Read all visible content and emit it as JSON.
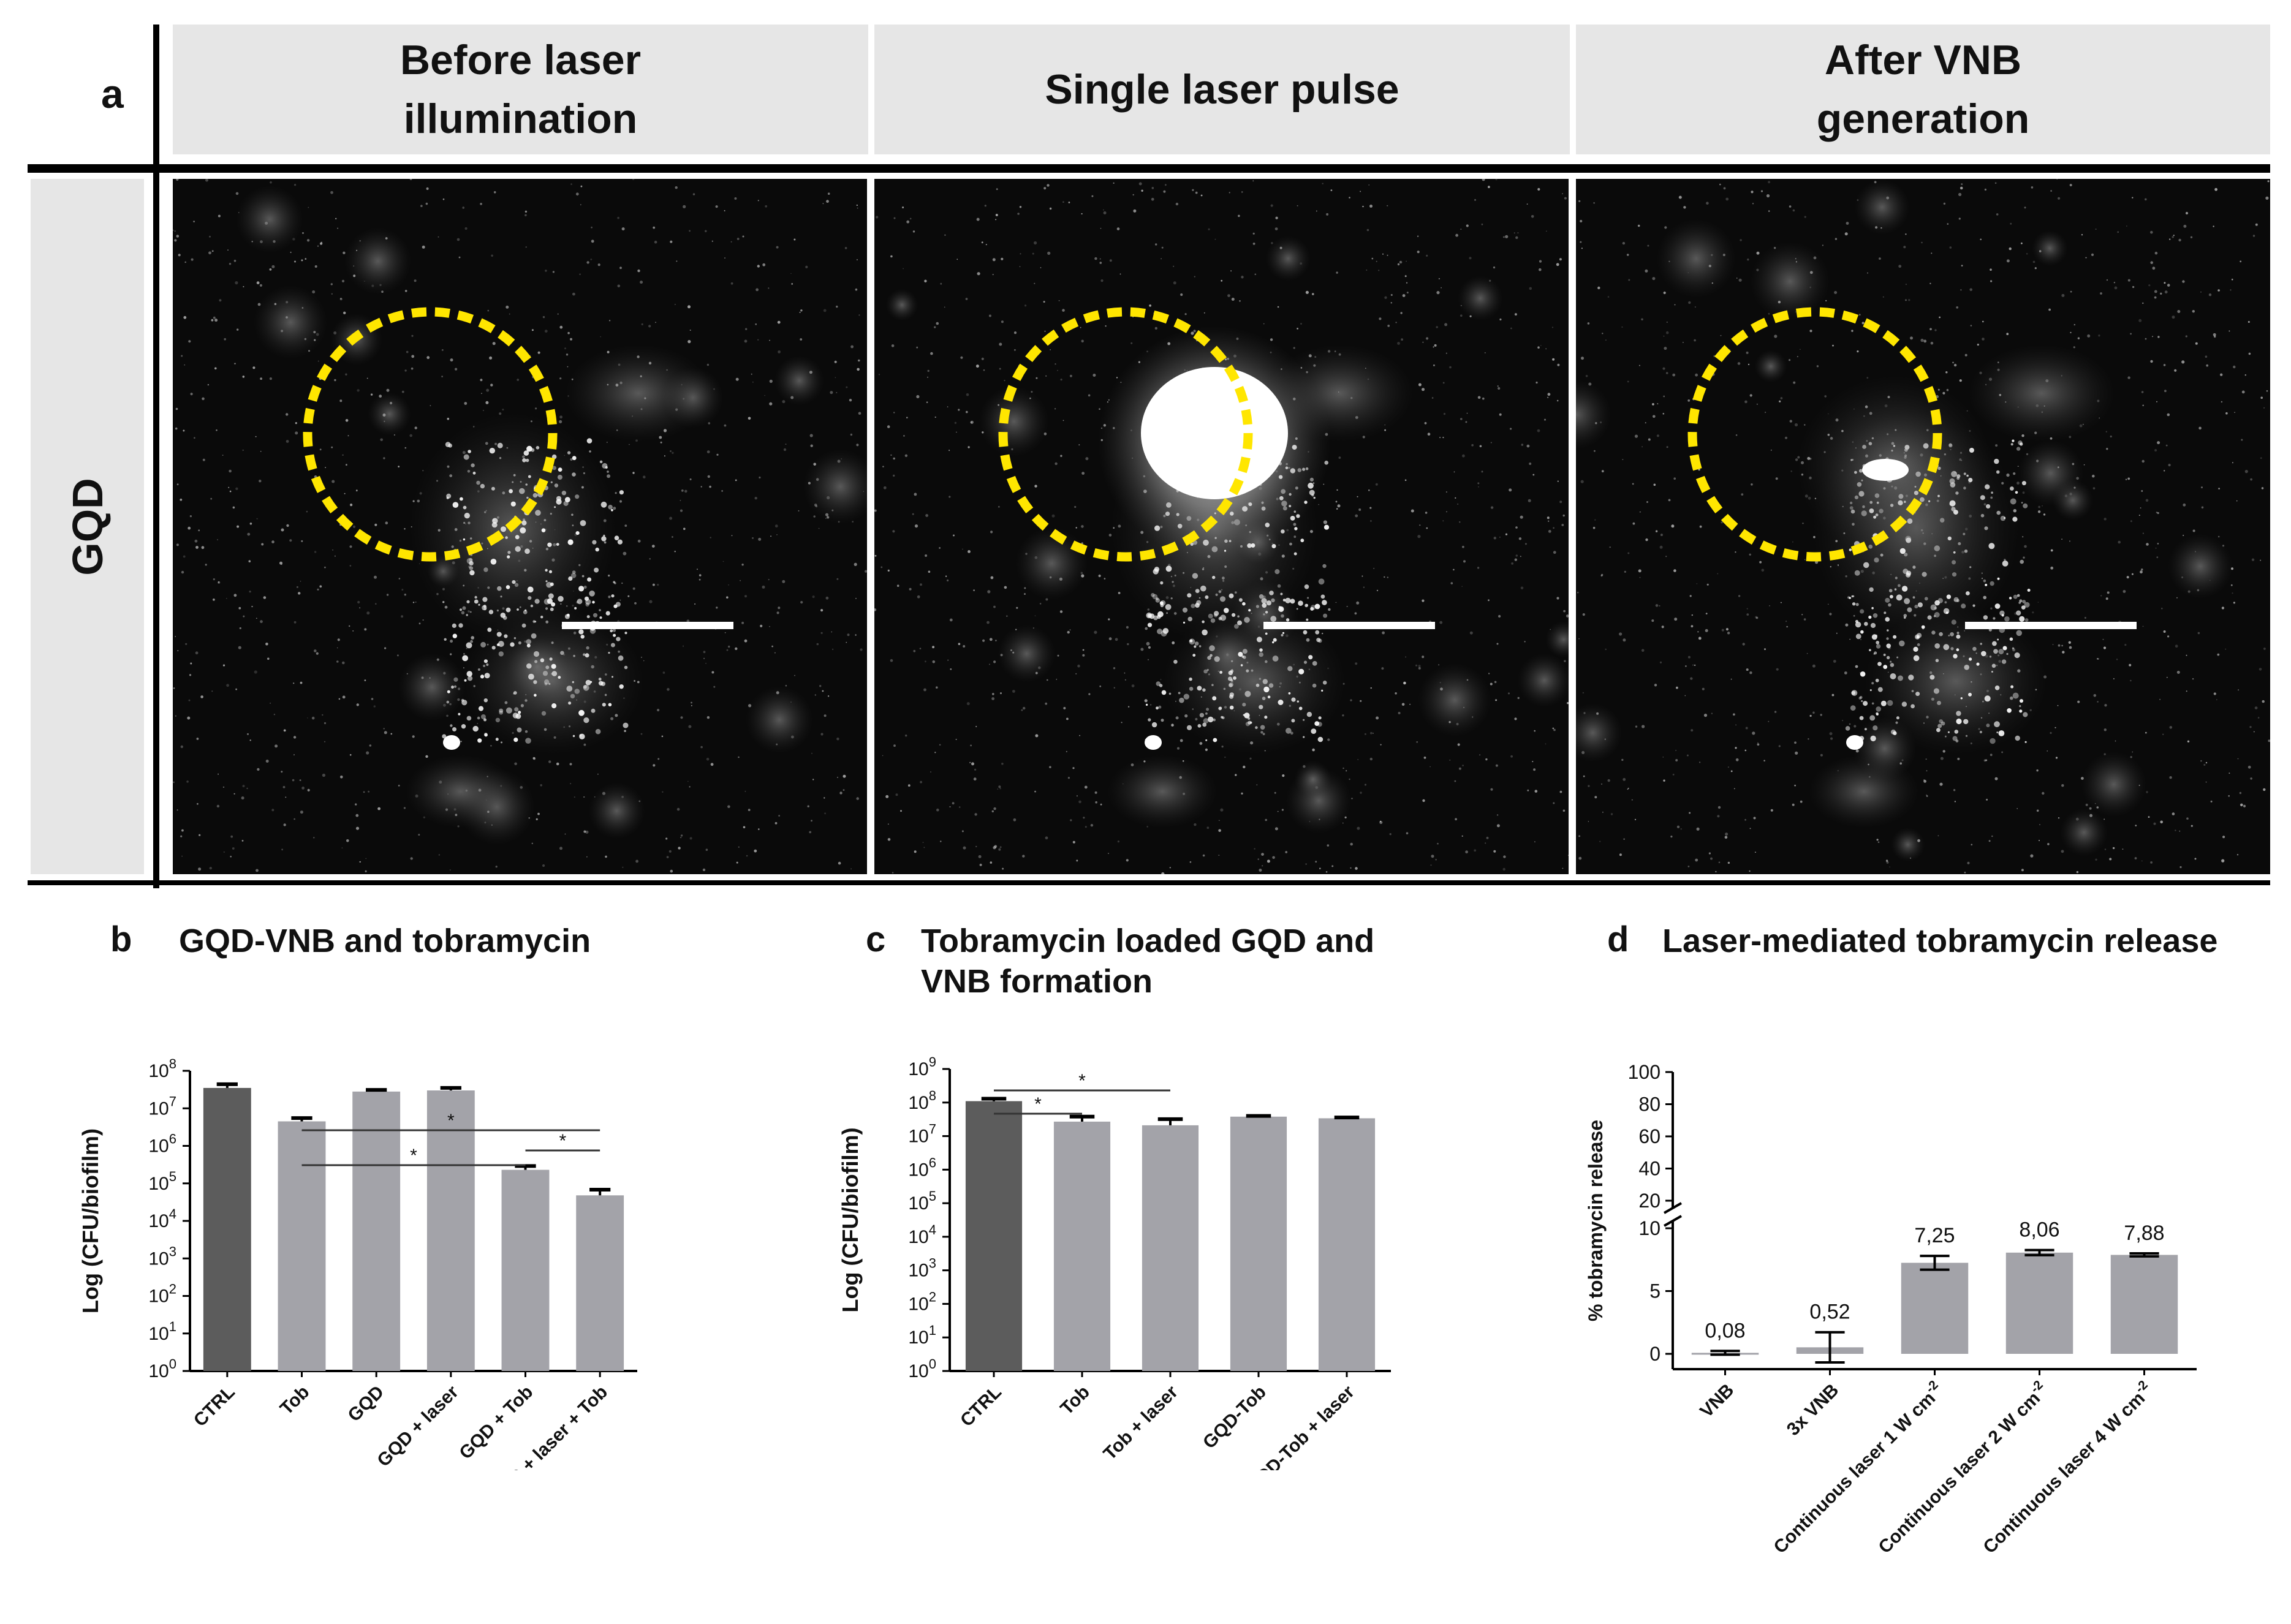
{
  "panel_a": {
    "letter": "a",
    "row_label": "GQD",
    "columns": [
      {
        "title": "Before laser illumination",
        "title_lines": [
          "Before laser",
          "illumination"
        ]
      },
      {
        "title": "Single laser pulse",
        "title_lines": [
          "Single laser pulse"
        ]
      },
      {
        "title": "After VNB generation",
        "title_lines": [
          "After VNB",
          "generation"
        ]
      }
    ],
    "image_names": [
      "before-laser-image",
      "single-pulse-image",
      "after-vnb-image"
    ],
    "colors": {
      "header_bg": "#e6e6e6",
      "circle": "#ffe600",
      "scale_bar": "#ffffff"
    }
  },
  "chart_data": [
    {
      "letter": "b",
      "title": "GQD-VNB and tobramycin",
      "type": "bar",
      "yscale": "log",
      "ylabel": "Log (CFU/biofilm)",
      "ylim": [
        1,
        100000000
      ],
      "yticks": [
        "10^0",
        "10^1",
        "10^2",
        "10^3",
        "10^4",
        "10^5",
        "10^6",
        "10^7",
        "10^8"
      ],
      "categories": [
        "CTRL",
        "Tob",
        "GQD",
        "GQD + laser",
        "GQD + Tob",
        "GQD + laser + Tob"
      ],
      "values": [
        35000000,
        4500000,
        28000000,
        30000000,
        230000,
        48000
      ],
      "error_upper": [
        44000000,
        5500000,
        31000000,
        35000000,
        290000,
        68000
      ],
      "bar_colors": [
        "#5c5c5c",
        "#a3a3a9",
        "#a3a3a9",
        "#a3a3a9",
        "#a3a3a9",
        "#a3a3a9"
      ],
      "significance": [
        {
          "from": "Tob",
          "to": "GQD + laser + Tob",
          "label": "*"
        },
        {
          "from": "Tob",
          "to": "GQD + Tob",
          "label": "*"
        },
        {
          "from": "GQD + Tob",
          "to": "GQD + laser + Tob",
          "label": "*"
        }
      ]
    },
    {
      "letter": "c",
      "title": "Tobramycin loaded GQD and VNB formation",
      "title_lines": [
        "Tobramycin loaded GQD and",
        "VNB formation"
      ],
      "type": "bar",
      "yscale": "log",
      "ylabel": "Log (CFU/biofilm)",
      "ylim": [
        1,
        1000000000
      ],
      "yticks": [
        "10^0",
        "10^1",
        "10^2",
        "10^3",
        "10^4",
        "10^5",
        "10^6",
        "10^7",
        "10^8",
        "10^9"
      ],
      "categories": [
        "CTRL",
        "Tob",
        "Tob + laser",
        "GQD-Tob",
        "GQD-Tob + laser"
      ],
      "values": [
        110000000,
        27000000,
        21000000,
        38000000,
        34000000
      ],
      "error_upper": [
        130000000,
        38000000,
        32000000,
        40000000,
        36000000
      ],
      "bar_colors": [
        "#5c5c5c",
        "#a3a3a9",
        "#a3a3a9",
        "#a3a3a9",
        "#a3a3a9"
      ],
      "significance": [
        {
          "from": "CTRL",
          "to": "Tob + laser",
          "label": "*"
        },
        {
          "from": "CTRL",
          "to": "Tob",
          "label": "*"
        }
      ]
    },
    {
      "letter": "d",
      "title": "Laser-mediated tobramycin release",
      "type": "bar",
      "yscale": "broken-linear",
      "ylabel": "% tobramycin release",
      "ylim_lower": [
        0,
        10
      ],
      "ylim_upper": [
        20,
        100
      ],
      "yticks_lower": [
        "0",
        "5",
        "10"
      ],
      "yticks_upper": [
        "20",
        "40",
        "60",
        "80",
        "100"
      ],
      "categories": [
        "VNB",
        "3x VNB",
        "Continuous laser 1 W cm-2",
        "Continuous laser 2 W cm-2",
        "Continuous laser 4 W cm-2"
      ],
      "category_parts": [
        {
          "main": "VNB",
          "sup": ""
        },
        {
          "main": "3x VNB",
          "sup": ""
        },
        {
          "main": "Continuous laser 1 W cm",
          "sup": "-2"
        },
        {
          "main": "Continuous laser 2 W cm",
          "sup": "-2"
        },
        {
          "main": "Continuous laser 4 W cm",
          "sup": "-2"
        }
      ],
      "values": [
        0.08,
        0.52,
        7.25,
        8.06,
        7.88
      ],
      "value_labels": [
        "0,08",
        "0,52",
        "7,25",
        "8,06",
        "7,88"
      ],
      "error": [
        0.15,
        1.2,
        0.55,
        0.2,
        0.12
      ],
      "bar_colors": [
        "#a3a3a9",
        "#a3a3a9",
        "#a3a3a9",
        "#a3a3a9",
        "#a3a3a9"
      ]
    }
  ]
}
